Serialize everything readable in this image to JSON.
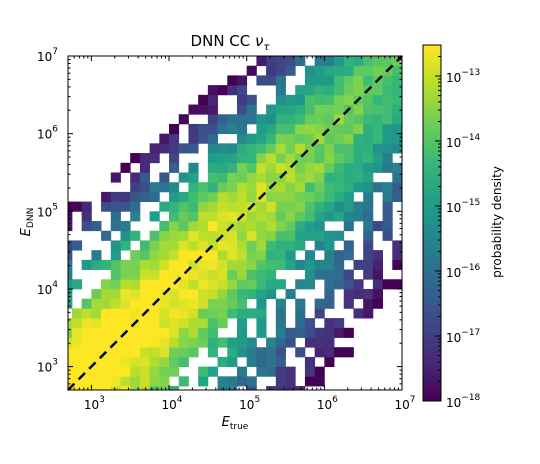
{
  "chart_data": {
    "type": "heatmap",
    "title": "DNN CC ντ",
    "title_parts": {
      "main": "DNN CC ",
      "symbol": "ν",
      "subscript": "τ"
    },
    "xlabel": {
      "main": "E",
      "subscript": "true"
    },
    "ylabel": {
      "main": "E",
      "subscript": "DNN"
    },
    "x_scale": "log",
    "y_scale": "log",
    "xlim": [
      500,
      10000000
    ],
    "ylim": [
      500,
      10000000
    ],
    "x_ticks": [
      {
        "value": 1000,
        "base": "10",
        "exp": "3"
      },
      {
        "value": 10000,
        "base": "10",
        "exp": "4"
      },
      {
        "value": 100000,
        "base": "10",
        "exp": "5"
      },
      {
        "value": 1000000,
        "base": "10",
        "exp": "6"
      },
      {
        "value": 10000000,
        "base": "10",
        "exp": "7"
      }
    ],
    "y_ticks": [
      {
        "value": 1000,
        "base": "10",
        "exp": "3"
      },
      {
        "value": 10000,
        "base": "10",
        "exp": "4"
      },
      {
        "value": 100000,
        "base": "10",
        "exp": "5"
      },
      {
        "value": 1000000,
        "base": "10",
        "exp": "6"
      },
      {
        "value": 10000000,
        "base": "10",
        "exp": "7"
      }
    ],
    "bins_per_decade": 8,
    "colorbar": {
      "label": "probability density",
      "scale": "log",
      "range": [
        1e-18,
        3e-13
      ],
      "ticks": [
        {
          "value": 1e-18,
          "base": "10",
          "exp": "−18"
        },
        {
          "value": 1e-17,
          "base": "10",
          "exp": "−17"
        },
        {
          "value": 1e-16,
          "base": "10",
          "exp": "−16"
        },
        {
          "value": 1e-15,
          "base": "10",
          "exp": "−15"
        },
        {
          "value": 1e-14,
          "base": "10",
          "exp": "−14"
        },
        {
          "value": 1e-13,
          "base": "10",
          "exp": "−13"
        }
      ],
      "colormap": "viridis"
    },
    "reference_line": {
      "style": "dashed",
      "color": "#000000",
      "relation": "y = x"
    },
    "density_model": {
      "peak_log10": -12.6,
      "peak_log10_e": 4.2,
      "energy_slope": -0.55,
      "core_width_decades": 0.3,
      "tail_below_slope": 1.55,
      "tail_above_slope": 3.1,
      "floor_log10": -18.2,
      "sparse_fraction_below": 0.35
    }
  }
}
